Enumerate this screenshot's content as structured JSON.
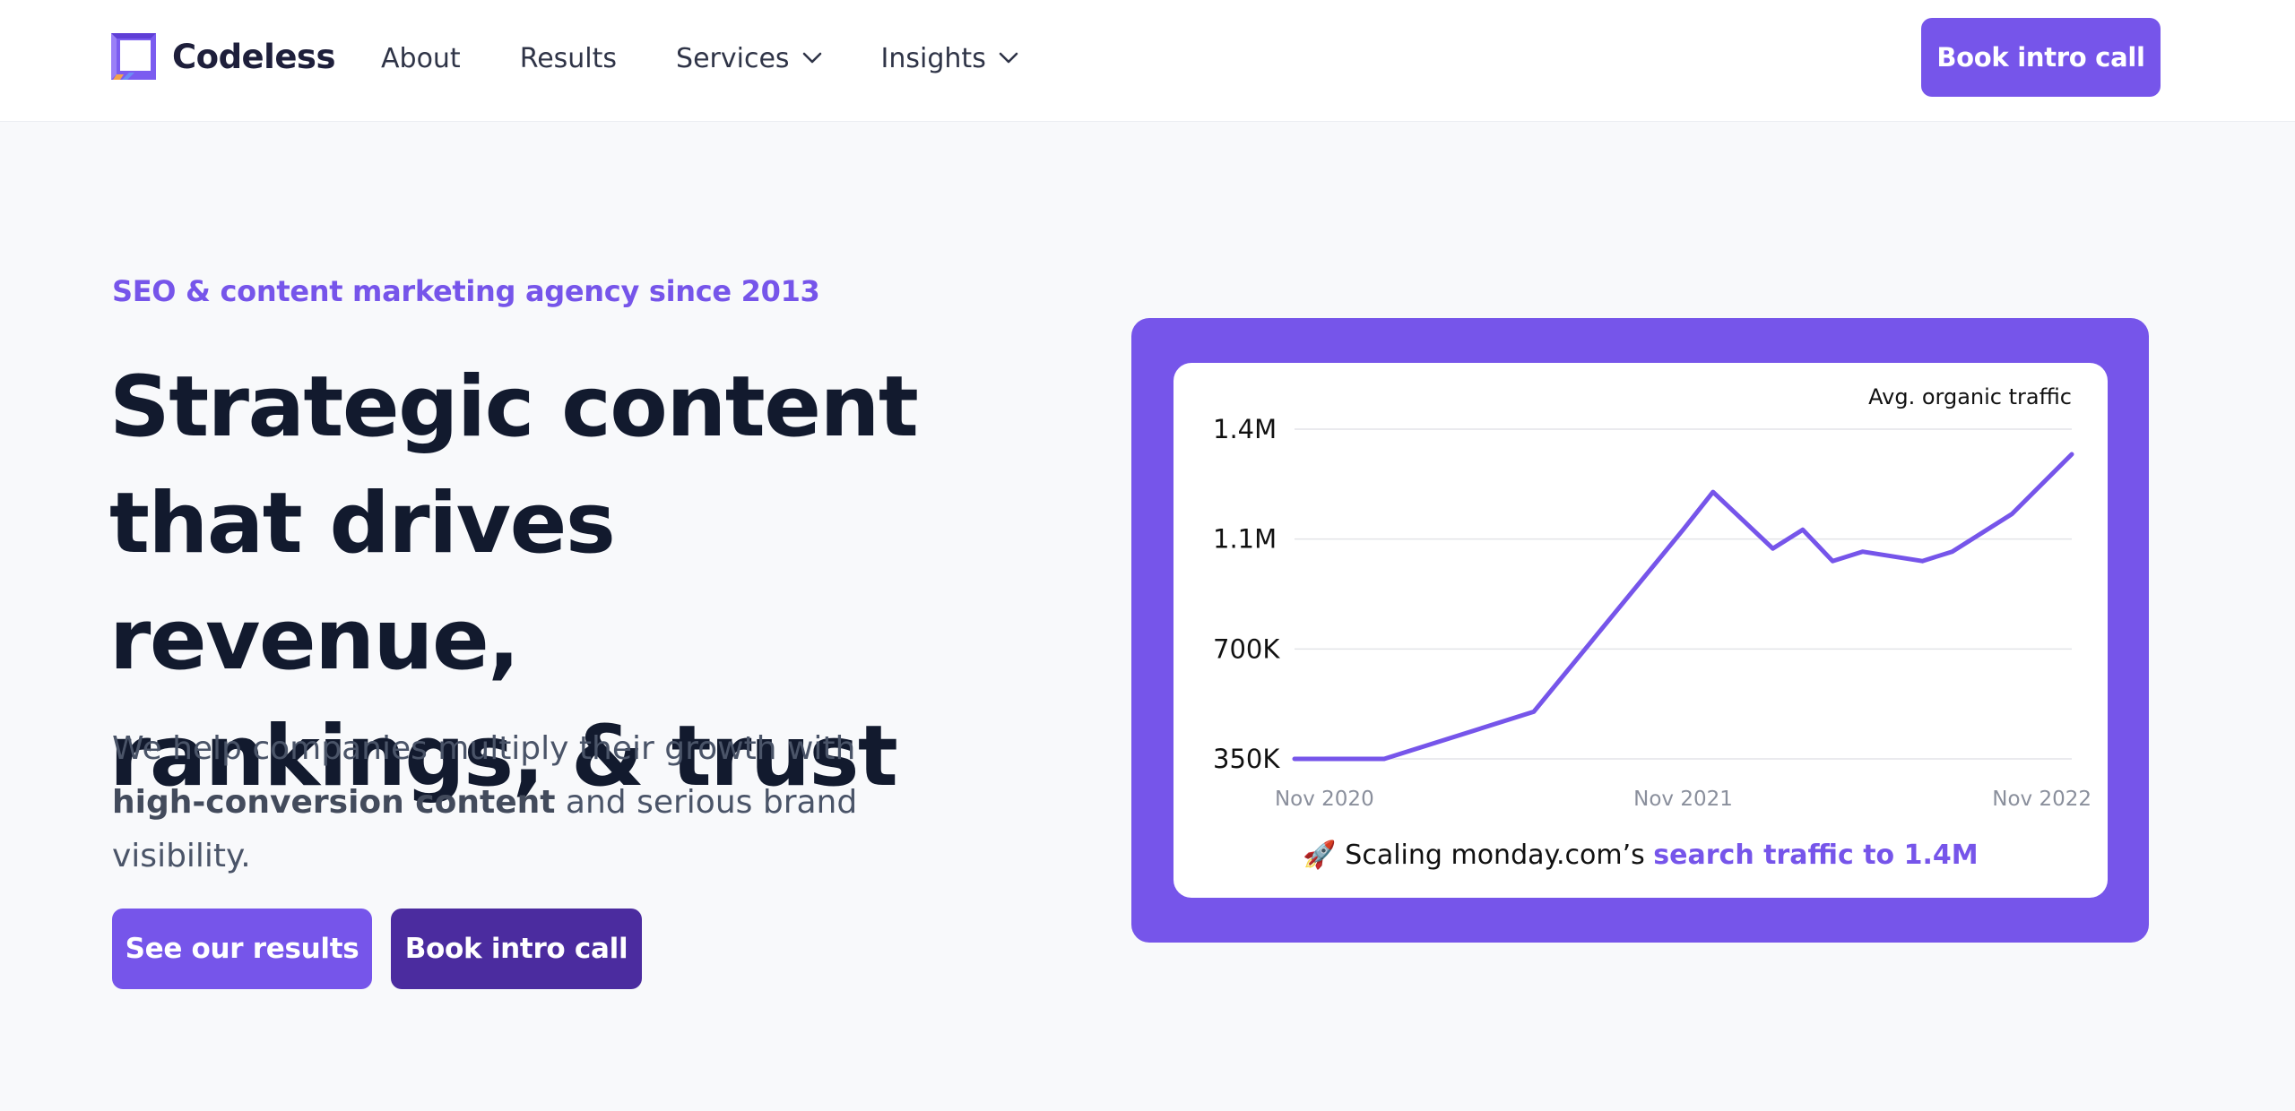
{
  "header": {
    "brand": "Codeless",
    "nav": [
      {
        "label": "About",
        "dropdown": false
      },
      {
        "label": "Results",
        "dropdown": false
      },
      {
        "label": "Services",
        "dropdown": true
      },
      {
        "label": "Insights",
        "dropdown": true
      }
    ],
    "cta_label": "Book intro call"
  },
  "hero": {
    "eyebrow": "SEO & content marketing agency since 2013",
    "headline_lines": [
      "Strategic content",
      "that drives revenue,",
      "rankings, & trust"
    ],
    "sub_before": "We help companies multiply their growth with ",
    "sub_bold": "high-conversion content",
    "sub_after": " and serious brand visibility.",
    "primary_button": "See our results",
    "secondary_button": "Book intro call"
  },
  "colors": {
    "accent": "#7655ea",
    "accent_dark": "#4b2c9f",
    "heading": "#121a2e",
    "body_text": "#4a5468"
  },
  "chart": {
    "caption_prefix": "🚀 Scaling monday.com’s ",
    "caption_highlight": "search traffic to 1.4M"
  },
  "chart_data": {
    "type": "line",
    "title": "Avg. organic traffic",
    "yticks": [
      {
        "value": 1400000,
        "label": "1.4M"
      },
      {
        "value": 1050000,
        "label": "1.1M"
      },
      {
        "value": 700000,
        "label": "700K"
      },
      {
        "value": 350000,
        "label": "350K"
      }
    ],
    "xticks": [
      {
        "x": "2020-11",
        "label": "Nov 2020"
      },
      {
        "x": "2021-11",
        "label": "Nov 2021"
      },
      {
        "x": "2022-11",
        "label": "Nov 2022"
      }
    ],
    "ylim": [
      350000,
      1400000
    ],
    "xlim": [
      "2020-10",
      "2022-12"
    ],
    "grid": true,
    "series": [
      {
        "color": "#7655ea",
        "points": [
          {
            "x": "2020-10",
            "y": 350000
          },
          {
            "x": "2021-01",
            "y": 350000
          },
          {
            "x": "2021-06",
            "y": 500000
          },
          {
            "x": "2021-11",
            "y": 1080000
          },
          {
            "x": "2021-12",
            "y": 1200000
          },
          {
            "x": "2022-02",
            "y": 1020000
          },
          {
            "x": "2022-03",
            "y": 1080000
          },
          {
            "x": "2022-04",
            "y": 980000
          },
          {
            "x": "2022-05",
            "y": 1010000
          },
          {
            "x": "2022-07",
            "y": 980000
          },
          {
            "x": "2022-08",
            "y": 1010000
          },
          {
            "x": "2022-10",
            "y": 1130000
          },
          {
            "x": "2022-12",
            "y": 1320000
          }
        ]
      }
    ]
  }
}
